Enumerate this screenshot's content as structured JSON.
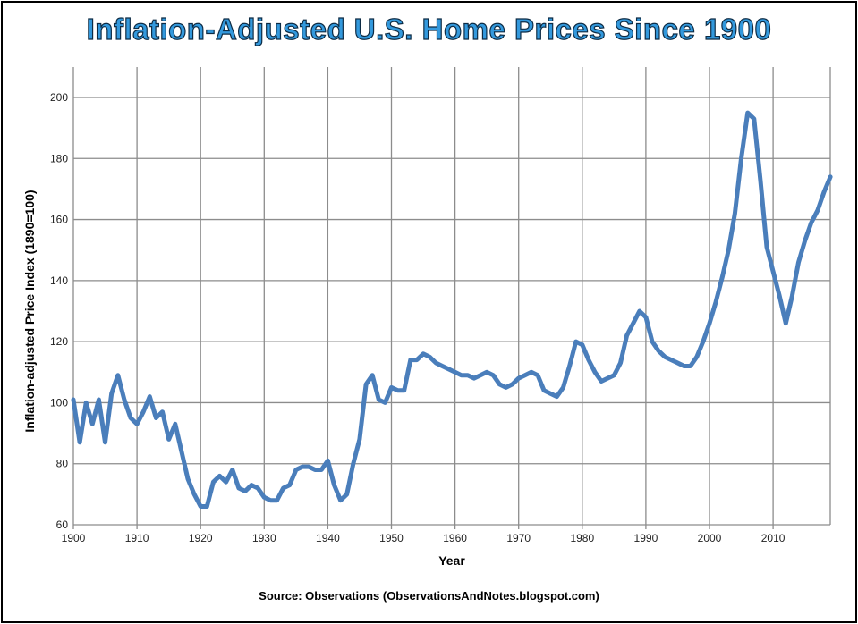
{
  "chart_data": {
    "type": "line",
    "title": "Inflation-Adjusted U.S. Home Prices Since 1900",
    "xlabel": "Year",
    "ylabel": "Inflation-adjusted  Price Index (1890=100)",
    "source": "Source: Observations  (ObservationsAndNotes.blogspot.com)",
    "xlim": [
      1900,
      2019
    ],
    "ylim": [
      60,
      210
    ],
    "x_ticks": [
      1900,
      1910,
      1920,
      1930,
      1940,
      1950,
      1960,
      1970,
      1980,
      1990,
      2000,
      2010
    ],
    "y_ticks": [
      60,
      80,
      100,
      120,
      140,
      160,
      180,
      200
    ],
    "grid": true,
    "line_color": "#4a7ebb",
    "x": [
      1900,
      1901,
      1902,
      1903,
      1904,
      1905,
      1906,
      1907,
      1908,
      1909,
      1910,
      1911,
      1912,
      1913,
      1914,
      1915,
      1916,
      1917,
      1918,
      1919,
      1920,
      1921,
      1922,
      1923,
      1924,
      1925,
      1926,
      1927,
      1928,
      1929,
      1930,
      1931,
      1932,
      1933,
      1934,
      1935,
      1936,
      1937,
      1938,
      1939,
      1940,
      1941,
      1942,
      1943,
      1944,
      1945,
      1946,
      1947,
      1948,
      1949,
      1950,
      1951,
      1952,
      1953,
      1954,
      1955,
      1956,
      1957,
      1958,
      1959,
      1960,
      1961,
      1962,
      1963,
      1964,
      1965,
      1966,
      1967,
      1968,
      1969,
      1970,
      1971,
      1972,
      1973,
      1974,
      1975,
      1976,
      1977,
      1978,
      1979,
      1980,
      1981,
      1982,
      1983,
      1984,
      1985,
      1986,
      1987,
      1988,
      1989,
      1990,
      1991,
      1992,
      1993,
      1994,
      1995,
      1996,
      1997,
      1998,
      1999,
      2000,
      2001,
      2002,
      2003,
      2004,
      2005,
      2006,
      2007,
      2008,
      2009,
      2010,
      2011,
      2012,
      2013,
      2014,
      2015,
      2016,
      2017,
      2018,
      2019
    ],
    "values": [
      101,
      87,
      100,
      93,
      101,
      87,
      103,
      109,
      101,
      95,
      93,
      97,
      102,
      95,
      97,
      88,
      93,
      84,
      75,
      70,
      66,
      66,
      74,
      76,
      74,
      78,
      72,
      71,
      73,
      72,
      69,
      68,
      68,
      72,
      73,
      78,
      79,
      79,
      78,
      78,
      81,
      73,
      68,
      70,
      80,
      88,
      106,
      109,
      101,
      100,
      105,
      104,
      104,
      114,
      114,
      116,
      115,
      113,
      112,
      111,
      110,
      109,
      109,
      108,
      109,
      110,
      109,
      106,
      105,
      106,
      108,
      109,
      110,
      109,
      104,
      103,
      102,
      105,
      112,
      120,
      119,
      114,
      110,
      107,
      108,
      109,
      113,
      122,
      126,
      130,
      128,
      120,
      117,
      115,
      114,
      113,
      112,
      112,
      115,
      120,
      126,
      133,
      141,
      150,
      162,
      180,
      195,
      193,
      173,
      151,
      143,
      135,
      126,
      135,
      146,
      153,
      159,
      163,
      169,
      174
    ]
  }
}
